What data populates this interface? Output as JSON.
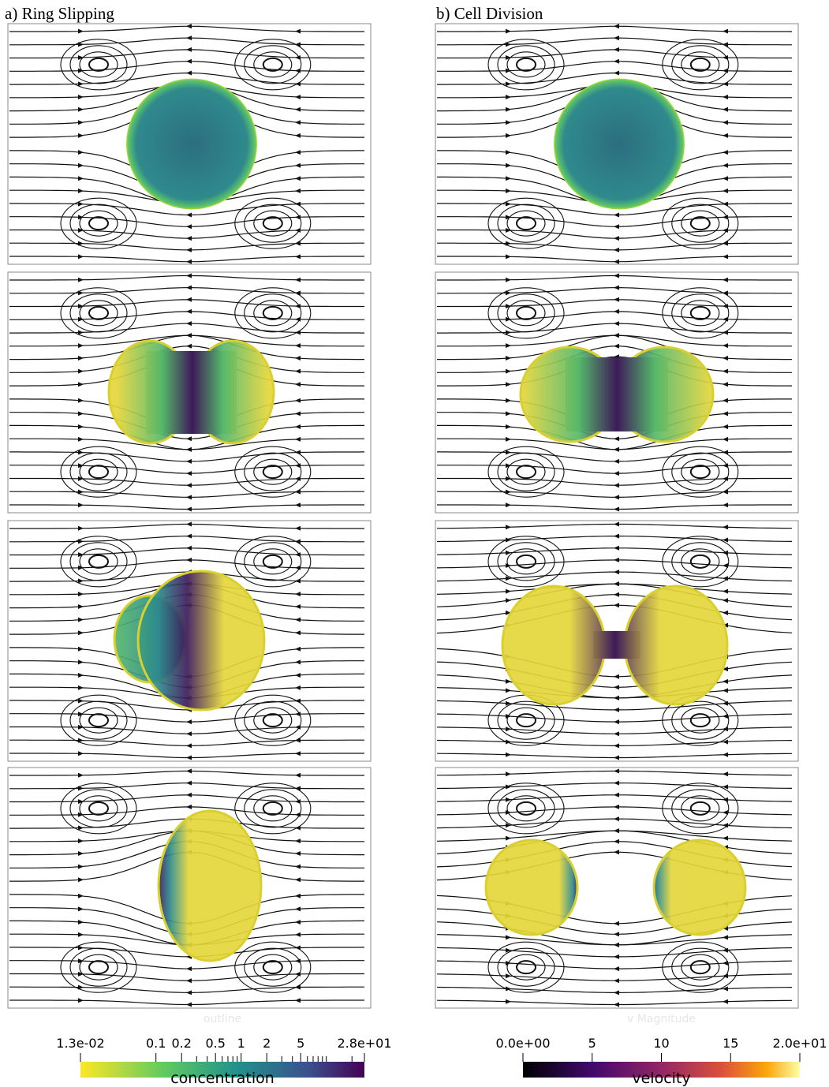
{
  "figure": {
    "columns": [
      {
        "title": "a) Ring Slipping"
      },
      {
        "title": "b) Cell Division"
      }
    ],
    "colorbars": [
      {
        "faint_label": "outline",
        "title": "concentration",
        "scale": "log",
        "range": [
          0.013,
          28
        ],
        "ticks": [
          {
            "value": 0.013,
            "label": "1.3e-02"
          },
          0.1,
          0.2,
          0.5,
          1,
          2,
          5,
          {
            "value": 28,
            "label": "2.8e+01"
          }
        ],
        "minor_ticks": [
          0.3,
          0.4,
          0.6,
          0.7,
          0.8,
          0.9,
          3,
          4,
          6,
          7,
          8,
          9,
          10,
          20
        ]
      },
      {
        "faint_label": "v Magnitude",
        "title": "velocity",
        "scale": "linear",
        "range": [
          0,
          20
        ],
        "ticks": [
          {
            "value": 0,
            "label": "0.0e+00"
          },
          5,
          10,
          15,
          {
            "value": 20,
            "label": "2.0e+01"
          }
        ],
        "minor_ticks": []
      }
    ]
  }
}
